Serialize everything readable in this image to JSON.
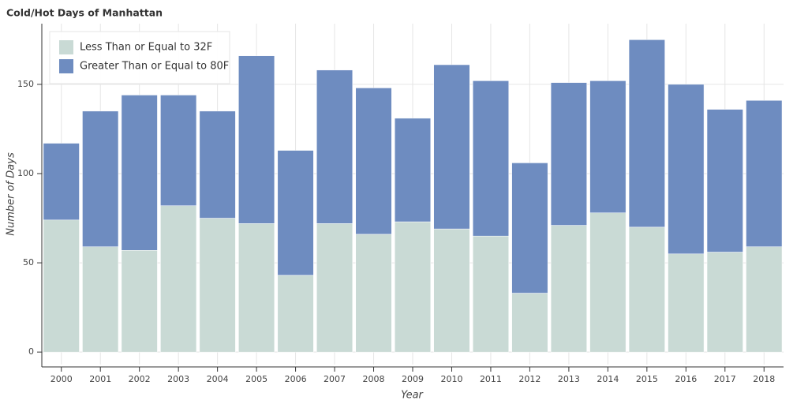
{
  "chart_data": {
    "type": "bar",
    "stacked": true,
    "title": "Cold/Hot Days of Manhattan",
    "x_label": "Year",
    "y_label": "Number of Days",
    "categories": [
      "2000",
      "2001",
      "2002",
      "2003",
      "2004",
      "2005",
      "2006",
      "2007",
      "2008",
      "2009",
      "2010",
      "2011",
      "2012",
      "2013",
      "2014",
      "2015",
      "2016",
      "2017",
      "2018"
    ],
    "series": [
      {
        "name": "Less Than or Equal to 32F",
        "color": "#c9dad5",
        "values": [
          74,
          59,
          57,
          82,
          75,
          72,
          43,
          72,
          66,
          73,
          69,
          65,
          33,
          71,
          78,
          70,
          55,
          56,
          59
        ]
      },
      {
        "name": "Greater Than or Equal to 80F",
        "color": "#6e8cc0",
        "values": [
          43,
          76,
          87,
          62,
          60,
          94,
          70,
          86,
          82,
          58,
          92,
          87,
          73,
          80,
          74,
          105,
          95,
          80,
          82
        ]
      }
    ],
    "ylim": [
      -7,
      184
    ],
    "yticks": [
      0,
      50,
      100,
      150
    ],
    "grid": true,
    "legend": "top-left"
  }
}
